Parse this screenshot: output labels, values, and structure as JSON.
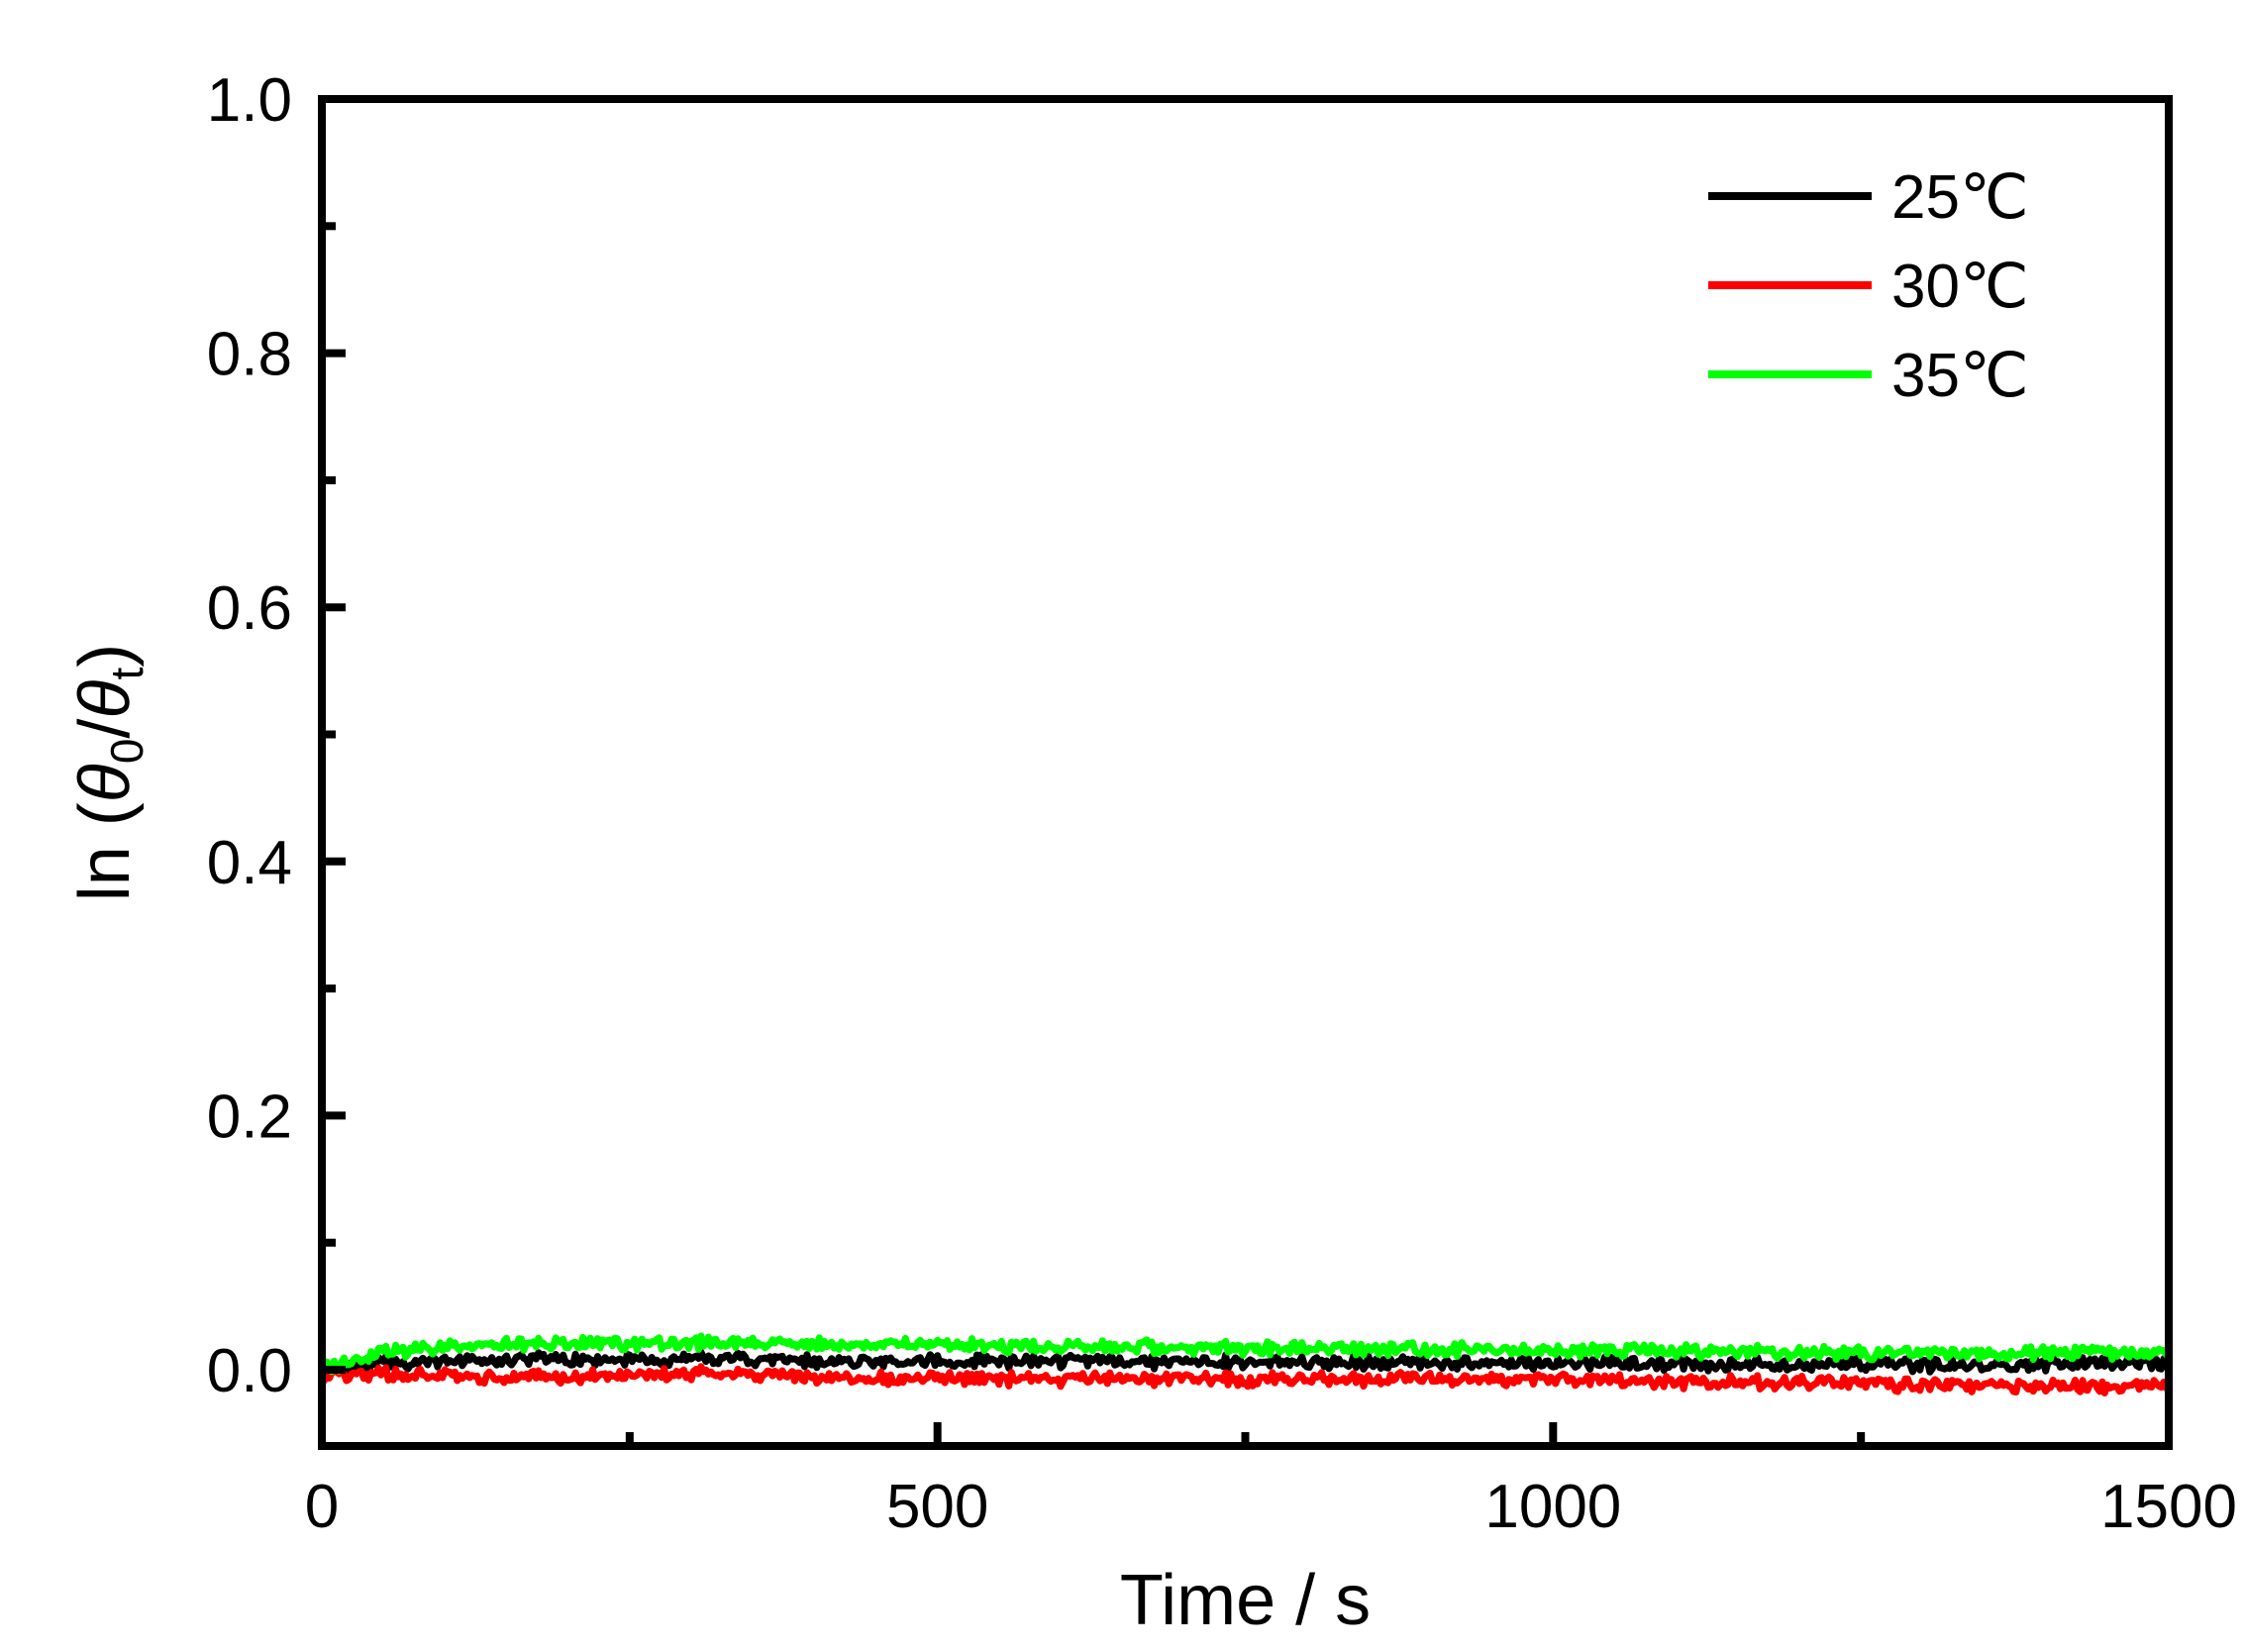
{
  "chart_data": {
    "type": "line",
    "xlabel": "Time / s",
    "ylabel": {
      "prefix": "ln (",
      "theta": "θ",
      "sub0": "0",
      "slash": "/",
      "subt": "t",
      "suffix": ")"
    },
    "xlim": [
      0,
      1500
    ],
    "ylim": [
      -0.06,
      1.0
    ],
    "x_ticks": [
      0,
      500,
      1000,
      1500
    ],
    "x_tick_labels": [
      "0",
      "500",
      "1000",
      "1500"
    ],
    "x_minor_ticks": [
      250,
      750,
      1250
    ],
    "y_ticks": [
      0.0,
      0.2,
      0.4,
      0.6,
      0.8,
      1.0
    ],
    "y_tick_labels": [
      "0.0",
      "0.2",
      "0.4",
      "0.6",
      "0.8",
      "1.0"
    ],
    "y_minor_ticks": [
      0.1,
      0.3,
      0.5,
      0.7,
      0.9
    ],
    "grid": false,
    "legend_position": "top-right",
    "series": [
      {
        "name": "25℃",
        "color": "#000000",
        "x": [
          0,
          50,
          100,
          150,
          200,
          250,
          300,
          350,
          400,
          450,
          500,
          550,
          600,
          650,
          700,
          750,
          800,
          850,
          900,
          950,
          1000,
          1050,
          1100,
          1150,
          1200,
          1250,
          1300,
          1350,
          1400,
          1450,
          1500
        ],
        "y": [
          0.0,
          0.005,
          0.007,
          0.008,
          0.008,
          0.008,
          0.008,
          0.008,
          0.007,
          0.007,
          0.007,
          0.007,
          0.007,
          0.007,
          0.006,
          0.006,
          0.006,
          0.006,
          0.005,
          0.005,
          0.005,
          0.005,
          0.004,
          0.004,
          0.004,
          0.004,
          0.003,
          0.003,
          0.004,
          0.004,
          0.004
        ]
      },
      {
        "name": "30℃",
        "color": "#ff0000",
        "x": [
          0,
          50,
          100,
          150,
          200,
          250,
          300,
          350,
          400,
          450,
          500,
          550,
          600,
          650,
          700,
          750,
          800,
          850,
          900,
          950,
          1000,
          1050,
          1100,
          1150,
          1200,
          1250,
          1300,
          1350,
          1400,
          1450,
          1500
        ],
        "y": [
          -0.005,
          -0.003,
          -0.004,
          -0.006,
          -0.005,
          -0.004,
          -0.003,
          -0.004,
          -0.006,
          -0.007,
          -0.006,
          -0.007,
          -0.008,
          -0.007,
          -0.007,
          -0.008,
          -0.007,
          -0.008,
          -0.007,
          -0.008,
          -0.008,
          -0.009,
          -0.01,
          -0.01,
          -0.01,
          -0.011,
          -0.012,
          -0.013,
          -0.013,
          -0.014,
          -0.013
        ]
      },
      {
        "name": "35℃",
        "color": "#00ff00",
        "x": [
          0,
          50,
          100,
          150,
          200,
          250,
          300,
          350,
          400,
          450,
          500,
          550,
          600,
          650,
          700,
          750,
          800,
          850,
          900,
          950,
          1000,
          1050,
          1100,
          1150,
          1200,
          1250,
          1300,
          1350,
          1400,
          1450,
          1500
        ],
        "y": [
          0.0,
          0.014,
          0.018,
          0.02,
          0.021,
          0.021,
          0.021,
          0.021,
          0.02,
          0.02,
          0.019,
          0.019,
          0.019,
          0.018,
          0.018,
          0.017,
          0.017,
          0.016,
          0.016,
          0.016,
          0.015,
          0.015,
          0.015,
          0.014,
          0.014,
          0.013,
          0.013,
          0.013,
          0.013,
          0.013,
          0.013
        ]
      }
    ]
  }
}
